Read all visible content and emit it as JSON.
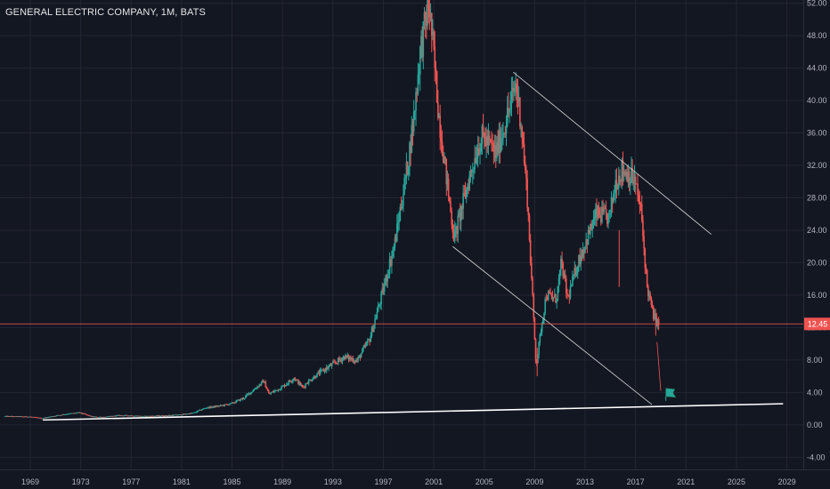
{
  "header": {
    "title": "GENERAL ELECTRIC COMPANY, 1M, BATS"
  },
  "colors": {
    "background": "#131722",
    "grid": "#232632",
    "up": "#26a69a",
    "down": "#ef5350",
    "price_line": "#ef5350",
    "trend_line": "#c8c8c8",
    "support_line": "#ffffff",
    "axis_text": "#b2b5be"
  },
  "chart_data": {
    "type": "candlestick",
    "title": "GENERAL ELECTRIC COMPANY, 1M, BATS",
    "symbol": "GE",
    "interval": "1M",
    "exchange": "BATS",
    "xlim": [
      1966.6,
      2030.3
    ],
    "ylim": [
      -5.5,
      52.4
    ],
    "x_ticks": [
      "1969",
      "1973",
      "1977",
      "1981",
      "1985",
      "1989",
      "1993",
      "1997",
      "2001",
      "2005",
      "2009",
      "2013",
      "2017",
      "2021",
      "2025",
      "2029"
    ],
    "y_ticks": [
      "-4.00",
      "0.00",
      "4.00",
      "8.00",
      "12.00",
      "16.00",
      "20.00",
      "24.00",
      "28.00",
      "32.00",
      "36.00",
      "40.00",
      "44.00",
      "48.00",
      "52.00"
    ],
    "last_price": "12.45",
    "grid": true,
    "approx_price_path": [
      [
        1967.0,
        1.05
      ],
      [
        1969.0,
        1.0
      ],
      [
        1970.0,
        0.8
      ],
      [
        1971.0,
        1.1
      ],
      [
        1972.0,
        1.35
      ],
      [
        1973.0,
        1.5
      ],
      [
        1974.0,
        1.0
      ],
      [
        1975.0,
        0.95
      ],
      [
        1976.0,
        1.15
      ],
      [
        1977.0,
        1.15
      ],
      [
        1978.0,
        1.05
      ],
      [
        1979.0,
        1.1
      ],
      [
        1980.0,
        1.15
      ],
      [
        1981.0,
        1.25
      ],
      [
        1982.0,
        1.45
      ],
      [
        1983.0,
        2.1
      ],
      [
        1984.0,
        2.3
      ],
      [
        1985.0,
        2.6
      ],
      [
        1986.0,
        3.3
      ],
      [
        1987.0,
        4.6
      ],
      [
        1987.6,
        5.4
      ],
      [
        1988.0,
        3.8
      ],
      [
        1989.0,
        4.6
      ],
      [
        1990.0,
        5.8
      ],
      [
        1990.7,
        4.6
      ],
      [
        1991.0,
        5.2
      ],
      [
        1992.0,
        6.4
      ],
      [
        1993.0,
        7.4
      ],
      [
        1994.0,
        8.4
      ],
      [
        1995.0,
        7.9
      ],
      [
        1996.0,
        10.6
      ],
      [
        1997.0,
        16.2
      ],
      [
        1998.0,
        22.5
      ],
      [
        1999.0,
        32.0
      ],
      [
        1999.5,
        38.0
      ],
      [
        2000.0,
        46.0
      ],
      [
        2000.7,
        52.0
      ],
      [
        2001.5,
        38.0
      ],
      [
        2002.2,
        29.0
      ],
      [
        2002.7,
        23.0
      ],
      [
        2003.5,
        28.0
      ],
      [
        2004.0,
        31.0
      ],
      [
        2004.6,
        34.5
      ],
      [
        2005.0,
        35.5
      ],
      [
        2006.0,
        33.5
      ],
      [
        2007.0,
        38.5
      ],
      [
        2007.6,
        42.0
      ],
      [
        2008.0,
        37.5
      ],
      [
        2008.5,
        28.0
      ],
      [
        2008.9,
        16.0
      ],
      [
        2009.2,
        7.2
      ],
      [
        2009.6,
        12.0
      ],
      [
        2010.0,
        16.0
      ],
      [
        2010.8,
        15.5
      ],
      [
        2011.2,
        20.0
      ],
      [
        2011.7,
        15.5
      ],
      [
        2012.5,
        20.0
      ],
      [
        2013.0,
        22.0
      ],
      [
        2014.0,
        26.0
      ],
      [
        2015.0,
        25.5
      ],
      [
        2015.5,
        30.0
      ],
      [
        2016.0,
        31.5
      ],
      [
        2016.5,
        31.0
      ],
      [
        2017.0,
        30.0
      ],
      [
        2017.5,
        26.5
      ],
      [
        2018.0,
        17.0
      ],
      [
        2018.5,
        13.5
      ],
      [
        2018.9,
        12.45
      ]
    ],
    "annotations": {
      "upper_trend_line": [
        [
          2007.3,
          43.5
        ],
        [
          2023.0,
          23.5
        ]
      ],
      "lower_trend_line": [
        [
          2002.5,
          22.0
        ],
        [
          2018.3,
          2.5
        ]
      ],
      "support_line": [
        [
          1970.0,
          0.6
        ],
        [
          2028.7,
          2.6
        ]
      ],
      "recent_path_line": [
        [
          2018.7,
          10.2
        ],
        [
          2019.0,
          4.2
        ]
      ],
      "flag_marker": {
        "x": 2019.4,
        "low": 3.4,
        "high": 4.5
      }
    }
  }
}
